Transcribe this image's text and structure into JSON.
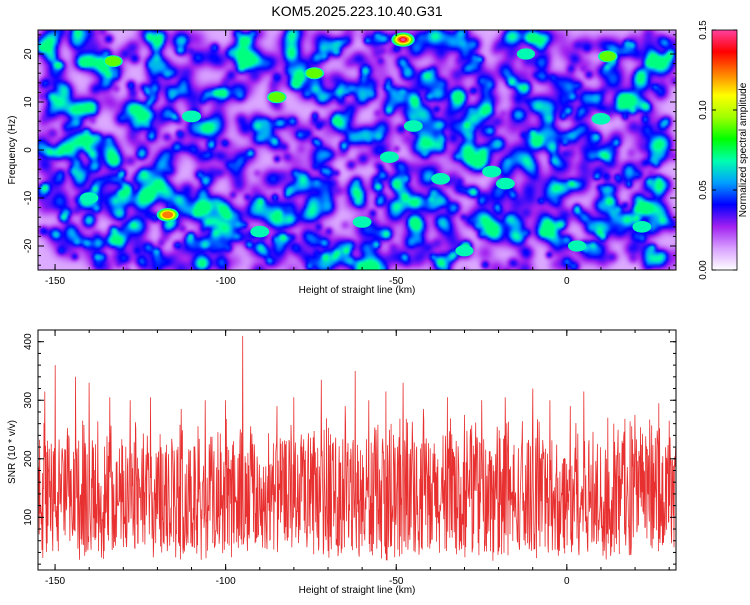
{
  "title": "KOM5.2025.223.10.40.G31",
  "chart_data": [
    {
      "type": "heatmap",
      "title": "KOM5.2025.223.10.40.G31",
      "xlabel": "Height of straight line (km)",
      "ylabel": "Frequency (Hz)",
      "xlim": [
        -155,
        32
      ],
      "ylim": [
        -25,
        25
      ],
      "x_ticks": [
        -150,
        -100,
        -50,
        0
      ],
      "x_tick_labels": [
        "-150",
        "-100",
        "-50",
        "0"
      ],
      "y_ticks": [
        -20,
        -10,
        0,
        10,
        20
      ],
      "y_tick_labels": [
        "-20",
        "-10",
        "0",
        "10",
        "20"
      ],
      "colorbar": {
        "label": "Normalized spectral amplitude",
        "range": [
          0,
          0.15
        ],
        "ticks": [
          0,
          0.05,
          0.1,
          0.15
        ],
        "tick_labels": [
          "0.00",
          "0.05",
          "0.10",
          "0.15"
        ],
        "colors": [
          "#ffffff",
          "#d8a0ff",
          "#a020f0",
          "#0000ff",
          "#00a0ff",
          "#00ffb0",
          "#00ff00",
          "#a0ff00",
          "#ffff00",
          "#ff8000",
          "#ff0000",
          "#ff40a0"
        ]
      },
      "description": "noise-like field, mostly amplitude 0.02-0.06 with scattered peaks",
      "peaks": [
        {
          "x": -48,
          "y": 23,
          "v": 0.15
        },
        {
          "x": -117,
          "y": -13.5,
          "v": 0.13
        },
        {
          "x": -85,
          "y": 11,
          "v": 0.09
        },
        {
          "x": -74,
          "y": 16,
          "v": 0.09
        },
        {
          "x": 12,
          "y": 19.5,
          "v": 0.09
        },
        {
          "x": -133,
          "y": 18.5,
          "v": 0.09
        },
        {
          "x": -37,
          "y": -6,
          "v": 0.08
        },
        {
          "x": -22,
          "y": -4.5,
          "v": 0.085
        },
        {
          "x": -110,
          "y": 7,
          "v": 0.085
        },
        {
          "x": 10,
          "y": 6.5,
          "v": 0.08
        },
        {
          "x": 22,
          "y": -16,
          "v": 0.08
        },
        {
          "x": -45,
          "y": 5,
          "v": 0.08
        },
        {
          "x": -52,
          "y": -1.5,
          "v": 0.08
        },
        {
          "x": -60,
          "y": -15,
          "v": 0.08
        },
        {
          "x": -18,
          "y": -7,
          "v": 0.08
        },
        {
          "x": -90,
          "y": -17,
          "v": 0.08
        },
        {
          "x": -30,
          "y": -21,
          "v": 0.07
        },
        {
          "x": -140,
          "y": -10,
          "v": 0.07
        },
        {
          "x": -12,
          "y": 20,
          "v": 0.07
        },
        {
          "x": 3,
          "y": -20,
          "v": 0.07
        }
      ]
    },
    {
      "type": "line",
      "xlabel": "Height of straight line (km)",
      "ylabel": "SNR (10 * v/v)",
      "xlim": [
        -155,
        32
      ],
      "ylim": [
        10,
        420
      ],
      "x_ticks": [
        -150,
        -100,
        -50,
        0
      ],
      "x_tick_labels": [
        "-150",
        "-100",
        "-50",
        "0"
      ],
      "y_ticks": [
        100,
        200,
        300,
        400
      ],
      "y_tick_labels": [
        "100",
        "200",
        "300",
        "400"
      ],
      "color": "#e83030",
      "description": "dense noisy trace centered near 120, spikes up to ~410",
      "spikes": [
        {
          "x": -153,
          "y": 315
        },
        {
          "x": -150,
          "y": 360
        },
        {
          "x": -144,
          "y": 340
        },
        {
          "x": -140,
          "y": 330
        },
        {
          "x": -134,
          "y": 305
        },
        {
          "x": -128,
          "y": 300
        },
        {
          "x": -122,
          "y": 305
        },
        {
          "x": -113,
          "y": 285
        },
        {
          "x": -106,
          "y": 300
        },
        {
          "x": -100,
          "y": 300
        },
        {
          "x": -95,
          "y": 410
        },
        {
          "x": -85,
          "y": 290
        },
        {
          "x": -80,
          "y": 305
        },
        {
          "x": -72,
          "y": 335
        },
        {
          "x": -65,
          "y": 290
        },
        {
          "x": -62,
          "y": 350
        },
        {
          "x": -58,
          "y": 300
        },
        {
          "x": -53,
          "y": 315
        },
        {
          "x": -48,
          "y": 330
        },
        {
          "x": -42,
          "y": 285
        },
        {
          "x": -35,
          "y": 305
        },
        {
          "x": -30,
          "y": 275
        },
        {
          "x": -25,
          "y": 300
        },
        {
          "x": -18,
          "y": 305
        },
        {
          "x": -10,
          "y": 320
        },
        {
          "x": -5,
          "y": 300
        },
        {
          "x": 1,
          "y": 290
        },
        {
          "x": 5,
          "y": 315
        },
        {
          "x": 12,
          "y": 270
        },
        {
          "x": 20,
          "y": 275
        },
        {
          "x": 27,
          "y": 295
        },
        {
          "x": 30,
          "y": 265
        }
      ]
    }
  ]
}
